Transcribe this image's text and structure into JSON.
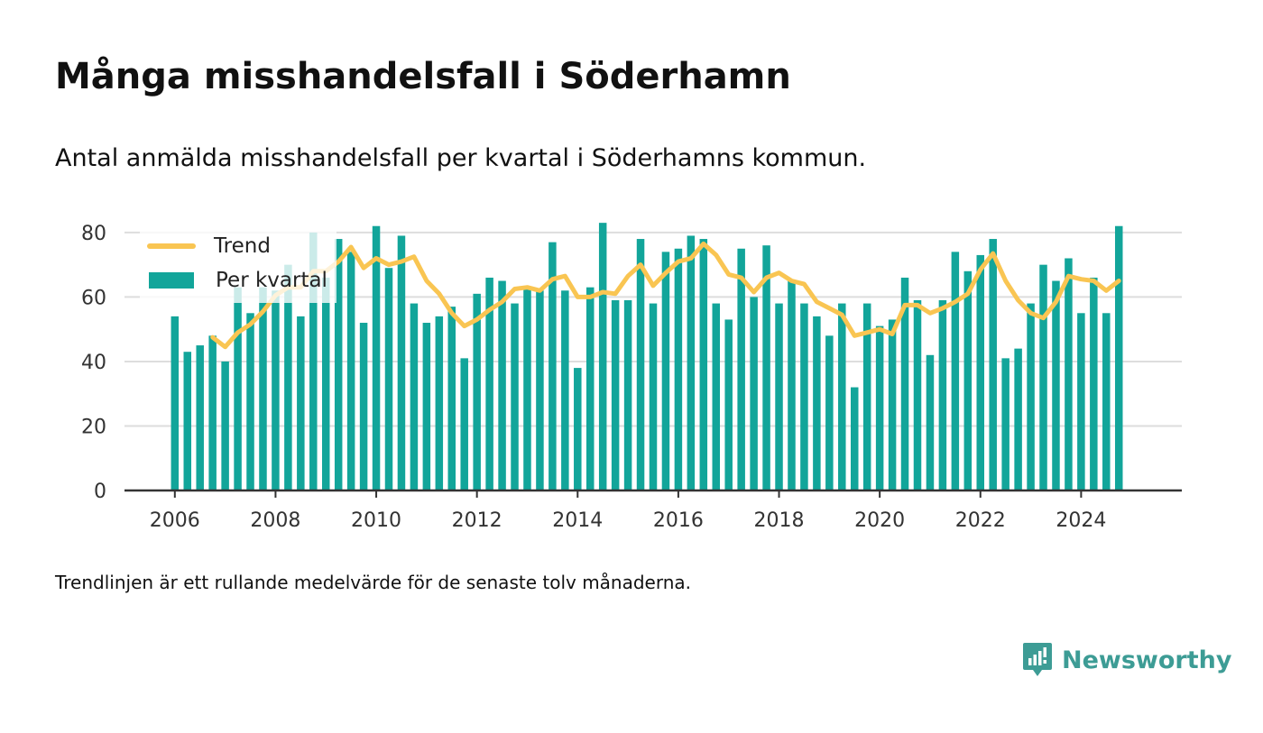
{
  "title": "Många misshandelsfall i Söderhamn",
  "subtitle": "Antal anmälda misshandelsfall per kvartal i Söderhamns kommun.",
  "footnote": "Trendlinjen är ett rullande medelvärde för de senaste tolv månaderna.",
  "brand": {
    "name": "Newsworthy",
    "icon": "newsworthy-logo-icon",
    "color": "#3d9c95"
  },
  "legend": {
    "trend_label": "Trend",
    "bars_label": "Per kvartal"
  },
  "colors": {
    "bars": "#12a59a",
    "trend": "#f9c552",
    "grid": "#dddddd",
    "axis": "#333333",
    "text": "#333333"
  },
  "chart_data": {
    "type": "bar",
    "xlim": [
      2005,
      2026
    ],
    "ylim": [
      0,
      85
    ],
    "y_ticks": [
      0,
      20,
      40,
      60,
      80
    ],
    "x_ticks": [
      2006,
      2008,
      2010,
      2012,
      2014,
      2016,
      2018,
      2020,
      2022,
      2024
    ],
    "grid": true,
    "legend_position": "top-left",
    "series": [
      {
        "name": "Per kvartal",
        "kind": "bar",
        "x": [
          2006.0,
          2006.25,
          2006.5,
          2006.75,
          2007.0,
          2007.25,
          2007.5,
          2007.75,
          2008.0,
          2008.25,
          2008.5,
          2008.75,
          2009.0,
          2009.25,
          2009.5,
          2009.75,
          2010.0,
          2010.25,
          2010.5,
          2010.75,
          2011.0,
          2011.25,
          2011.5,
          2011.75,
          2012.0,
          2012.25,
          2012.5,
          2012.75,
          2013.0,
          2013.25,
          2013.5,
          2013.75,
          2014.0,
          2014.25,
          2014.5,
          2014.75,
          2015.0,
          2015.25,
          2015.5,
          2015.75,
          2016.0,
          2016.25,
          2016.5,
          2016.75,
          2017.0,
          2017.25,
          2017.5,
          2017.75,
          2018.0,
          2018.25,
          2018.5,
          2018.75,
          2019.0,
          2019.25,
          2019.5,
          2019.75,
          2020.0,
          2020.25,
          2020.5,
          2020.75,
          2021.0,
          2021.25,
          2021.5,
          2021.75,
          2022.0,
          2022.25,
          2022.5,
          2022.75,
          2023.0,
          2023.25,
          2023.5,
          2023.75,
          2024.0,
          2024.25,
          2024.5,
          2024.75
        ],
        "values": [
          54,
          43,
          45,
          48,
          40,
          63,
          55,
          63,
          62,
          70,
          54,
          80,
          66,
          78,
          74,
          52,
          82,
          69,
          79,
          58,
          52,
          54,
          57,
          41,
          61,
          66,
          65,
          58,
          63,
          62,
          77,
          62,
          38,
          63,
          83,
          59,
          59,
          78,
          58,
          74,
          75,
          79,
          78,
          58,
          53,
          75,
          60,
          76,
          58,
          65,
          58,
          54,
          48,
          58,
          32,
          58,
          51,
          53,
          66,
          59,
          42,
          59,
          74,
          68,
          73,
          78,
          41,
          44,
          58,
          70,
          65,
          72,
          55,
          66,
          55,
          82
        ]
      },
      {
        "name": "Trend",
        "kind": "line",
        "x": [
          2006.75,
          2007.0,
          2007.25,
          2007.5,
          2007.75,
          2008.0,
          2008.25,
          2008.5,
          2008.75,
          2009.0,
          2009.25,
          2009.5,
          2009.75,
          2010.0,
          2010.25,
          2010.5,
          2010.75,
          2011.0,
          2011.25,
          2011.5,
          2011.75,
          2012.0,
          2012.25,
          2012.5,
          2012.75,
          2013.0,
          2013.25,
          2013.5,
          2013.75,
          2014.0,
          2014.25,
          2014.5,
          2014.75,
          2015.0,
          2015.25,
          2015.5,
          2015.75,
          2016.0,
          2016.25,
          2016.5,
          2016.75,
          2017.0,
          2017.25,
          2017.5,
          2017.75,
          2018.0,
          2018.25,
          2018.5,
          2018.75,
          2019.0,
          2019.25,
          2019.5,
          2019.75,
          2020.0,
          2020.25,
          2020.5,
          2020.75,
          2021.0,
          2021.25,
          2021.5,
          2021.75,
          2022.0,
          2022.25,
          2022.5,
          2022.75,
          2023.0,
          2023.25,
          2023.5,
          2023.75,
          2024.0,
          2024.25,
          2024.5,
          2024.75
        ],
        "values": [
          47.5,
          44.5,
          49,
          51.5,
          55.5,
          60.5,
          63,
          63,
          68,
          68,
          71,
          75.5,
          69,
          72,
          70,
          71,
          72.5,
          65,
          61,
          55,
          51,
          53,
          56,
          58.5,
          62.5,
          63,
          62,
          65.5,
          66.5,
          60,
          60,
          61.5,
          61,
          66.5,
          70,
          63.5,
          67.5,
          71,
          72,
          76.5,
          73,
          67,
          66,
          61.5,
          66,
          67.5,
          65,
          64,
          58.5,
          56.5,
          54.5,
          48,
          49,
          50,
          48.5,
          57.5,
          57.5,
          55,
          56.5,
          58.5,
          61,
          68.5,
          73.5,
          65,
          59,
          55,
          53.5,
          58.5,
          66.5,
          65.5,
          65,
          62,
          65
        ]
      }
    ]
  }
}
